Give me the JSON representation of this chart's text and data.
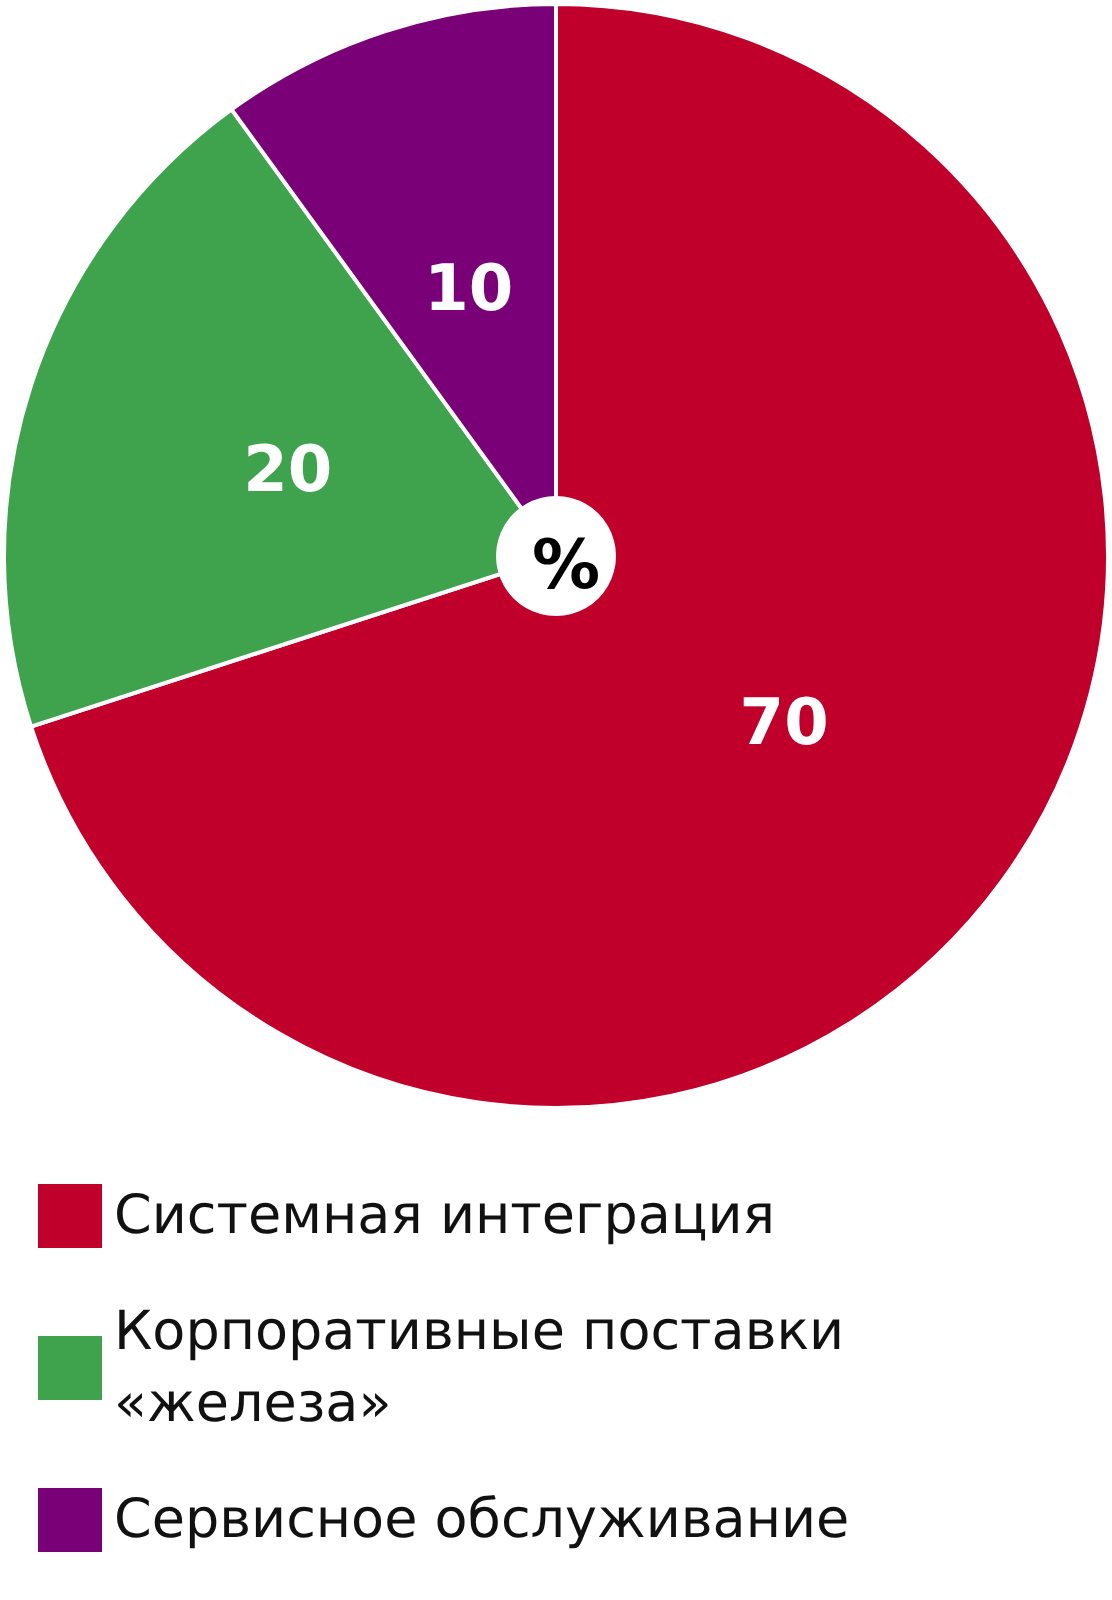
{
  "chart_data": {
    "type": "pie",
    "title": "%",
    "categories": [
      "Системная интеграция",
      "Корпоративные поставки «железа»",
      "Сервисное обслуживание"
    ],
    "values": [
      70,
      20,
      10
    ],
    "colors": [
      "#c0002a",
      "#3fa34d",
      "#7a0077"
    ],
    "data_labels": true,
    "legend": "bottom"
  }
}
